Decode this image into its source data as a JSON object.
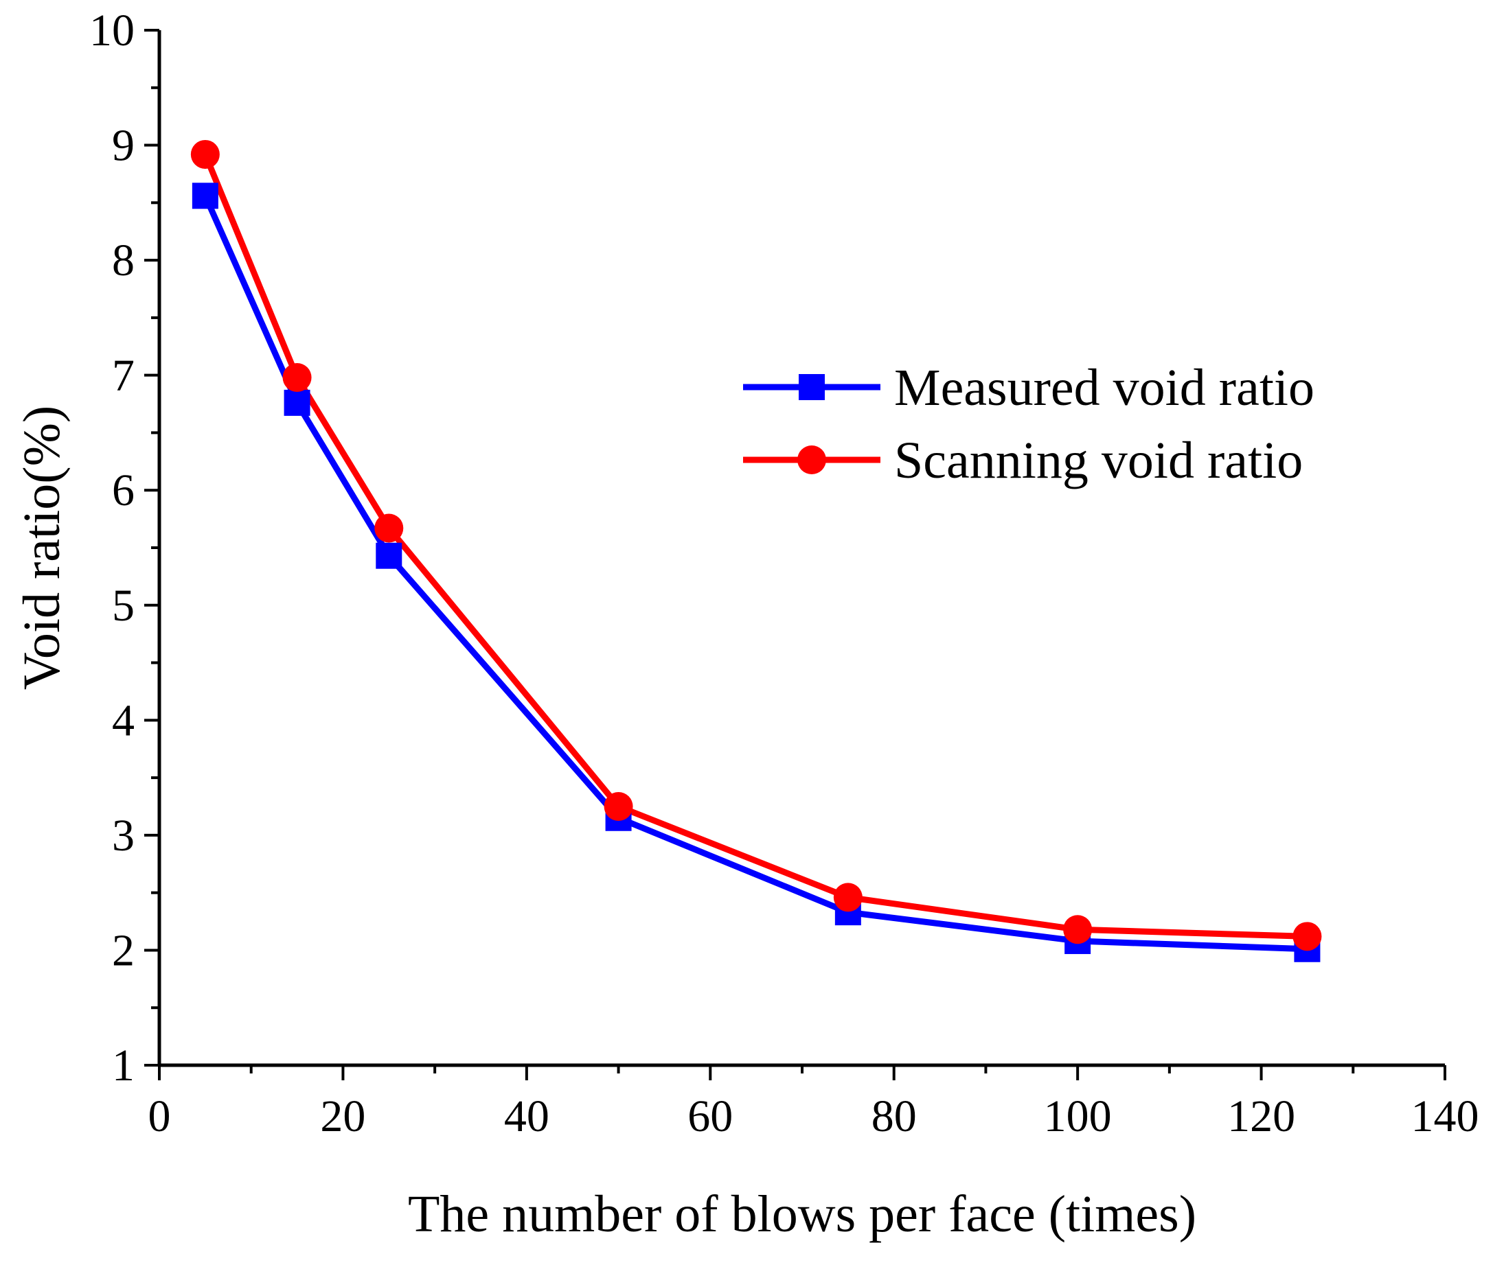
{
  "chart_data": {
    "type": "line",
    "xlabel": "The number of blows per face (times)",
    "ylabel": "Void ratio(%)",
    "xlim": [
      0,
      140
    ],
    "ylim": [
      1,
      10
    ],
    "x_ticks": [
      0,
      20,
      40,
      60,
      80,
      100,
      120,
      140
    ],
    "y_ticks": [
      1,
      2,
      3,
      4,
      5,
      6,
      7,
      8,
      9,
      10
    ],
    "x_tick_labels": [
      "0",
      "20",
      "40",
      "60",
      "80",
      "100",
      "120",
      "140"
    ],
    "y_tick_labels": [
      "1",
      "2",
      "3",
      "4",
      "5",
      "6",
      "7",
      "8",
      "9",
      "10"
    ],
    "grid": false,
    "legend_position": "right",
    "series": [
      {
        "name": "Measured void ratio",
        "color": "#0000ff",
        "marker": "square",
        "x": [
          5,
          15,
          25,
          50,
          75,
          100,
          125
        ],
        "y": [
          8.56,
          6.76,
          5.43,
          3.15,
          2.33,
          2.08,
          2.01
        ]
      },
      {
        "name": "Scanning void ratio",
        "color": "#ff0000",
        "marker": "circle",
        "x": [
          5,
          15,
          25,
          50,
          75,
          100,
          125
        ],
        "y": [
          8.92,
          6.98,
          5.67,
          3.25,
          2.46,
          2.18,
          2.12
        ]
      }
    ]
  }
}
